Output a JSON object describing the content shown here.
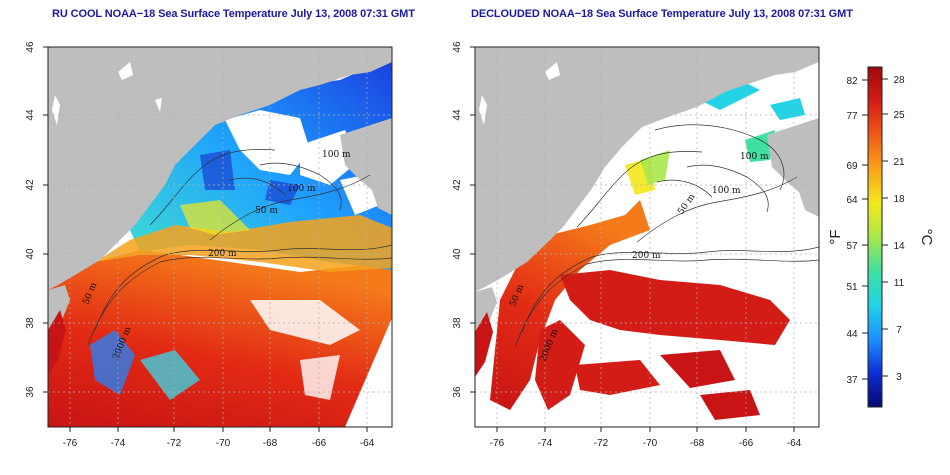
{
  "titles": {
    "left": "RU COOL NOAA−18 Sea Surface Temperature July 13, 2008 07:31 GMT",
    "right": "DECLOUDED NOAA−18 Sea Surface Temperature July 13, 2008 07:31 GMT"
  },
  "axes": {
    "lat_ticks": [
      "46",
      "44",
      "42",
      "40",
      "38",
      "36"
    ],
    "lon_ticks": [
      "-76",
      "-74",
      "-72",
      "-70",
      "-68",
      "-66",
      "-64"
    ]
  },
  "contour_labels": {
    "left": [
      "100 m",
      "100 m",
      "50 m",
      "200 m",
      "50 m",
      "2000 m"
    ],
    "right": [
      "100 m",
      "100 m",
      "50 m",
      "200 m",
      "50 m",
      "2000 m"
    ]
  },
  "colorbar": {
    "fahrenheit_label": "°F",
    "celsius_label": "°C",
    "fahrenheit_ticks": [
      "82",
      "77",
      "69",
      "64",
      "57",
      "51",
      "44",
      "37"
    ],
    "celsius_ticks": [
      "28",
      "25",
      "21",
      "18",
      "14",
      "11",
      "7",
      "3"
    ],
    "colors": [
      "#08086e",
      "#0b2fd6",
      "#1e90ff",
      "#22d3e6",
      "#3fe0a0",
      "#a8e84a",
      "#f4e81c",
      "#f8a41a",
      "#ee5a18",
      "#d41c16",
      "#9e0a0a"
    ]
  },
  "colors": {
    "land": "#bebebe",
    "cloud": "#ffffff",
    "title": "#1a1aa0",
    "contour": "#333333",
    "grid": "#b0b0b0"
  }
}
